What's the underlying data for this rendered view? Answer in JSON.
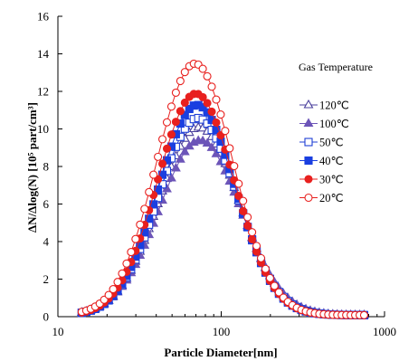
{
  "chart_data": {
    "type": "line",
    "xlabel": "Particle Diameter[nm]",
    "ylabel": "ΔN/Δlog(N)   [10⁵ part/cm³]",
    "xscale": "log",
    "xlim": [
      10,
      1000
    ],
    "ylim": [
      0,
      16
    ],
    "xticks": [
      "10",
      "100",
      "1000"
    ],
    "yticks": [
      "0",
      "2",
      "4",
      "6",
      "8",
      "10",
      "12",
      "14",
      "16"
    ],
    "grid": false,
    "legend": {
      "title": "Gas Temperature",
      "placement": "right",
      "entries": [
        "120℃",
        "100℃",
        "50℃",
        "40℃",
        "30℃",
        "20℃"
      ]
    },
    "series": [
      {
        "name": "120℃",
        "marker": "triangle-open",
        "color": "#4a3f9c",
        "peak_x": 73,
        "peak_y": 10.0,
        "sigma": 0.245
      },
      {
        "name": "100℃",
        "marker": "triangle-filled",
        "color": "#6c55b8",
        "peak_x": 74,
        "peak_y": 9.3,
        "sigma": 0.25
      },
      {
        "name": "50℃",
        "marker": "square-open",
        "color": "#1f3fd6",
        "peak_x": 72,
        "peak_y": 10.5,
        "sigma": 0.24
      },
      {
        "name": "40℃",
        "marker": "square-filled",
        "color": "#1a3fe0",
        "peak_x": 71,
        "peak_y": 11.2,
        "sigma": 0.235
      },
      {
        "name": "30℃",
        "marker": "circle-filled",
        "color": "#e8201e",
        "peak_x": 70,
        "peak_y": 11.8,
        "sigma": 0.235
      },
      {
        "name": "20℃",
        "marker": "circle-open",
        "color": "#e8201e",
        "peak_x": 69,
        "peak_y": 13.4,
        "sigma": 0.235
      }
    ],
    "x_range_points": [
      14,
      750
    ]
  }
}
